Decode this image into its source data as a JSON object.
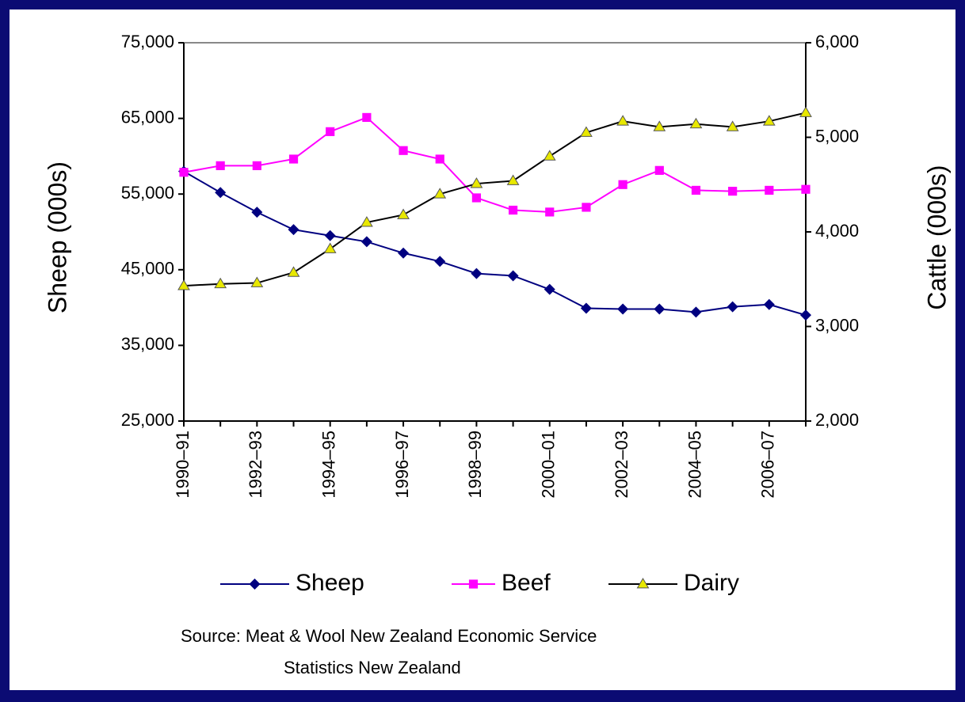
{
  "chart_data": {
    "type": "line",
    "y_label": "Sheep (000s)",
    "y2_label": "Cattle (000s)",
    "categories": [
      "1990–91",
      null,
      "1992–93",
      null,
      "1994–95",
      null,
      "1996–97",
      null,
      "1998–99",
      null,
      "2000–01",
      null,
      "2002–03",
      null,
      "2004–05",
      null,
      "2006–07",
      null
    ],
    "series": [
      {
        "name": "Sheep",
        "color": "#000080",
        "marker": "diamond",
        "marker_color": "#000080",
        "values": [
          58000,
          55200,
          52600,
          50300,
          49500,
          48700,
          47200,
          46100,
          44500,
          44200,
          42400,
          39900,
          39800,
          39800,
          39400,
          40100,
          40400,
          39000
        ]
      },
      {
        "name": "Beef",
        "color": "#ff00ff",
        "marker": "square",
        "marker_color": "#ff00ff",
        "axis": "y2",
        "values": [
          4630,
          4700,
          4700,
          4770,
          5060,
          5210,
          4860,
          4770,
          4360,
          4230,
          4210,
          4260,
          4500,
          4650,
          4440,
          4430,
          4440,
          4450
        ]
      },
      {
        "name": "Dairy",
        "color": "#000000",
        "marker": "triangle",
        "marker_color": "#e8e800",
        "axis": "y2",
        "values": [
          3430,
          3450,
          3460,
          3570,
          3820,
          4100,
          4180,
          4400,
          4510,
          4540,
          4800,
          5050,
          5170,
          5110,
          5140,
          5110,
          5170,
          5260
        ]
      }
    ],
    "ylim": [
      25000,
      75000
    ],
    "yticks": [
      {
        "value": 25000,
        "label": "25,000"
      },
      {
        "value": 35000,
        "label": "35,000"
      },
      {
        "value": 45000,
        "label": "45,000"
      },
      {
        "value": 55000,
        "label": "55,000"
      },
      {
        "value": 65000,
        "label": "65,000"
      },
      {
        "value": 75000,
        "label": "75,000"
      }
    ],
    "y2lim": [
      2000,
      6000
    ],
    "y2ticks": [
      {
        "value": 2000,
        "label": "2,000"
      },
      {
        "value": 3000,
        "label": "3,000"
      },
      {
        "value": 4000,
        "label": "4,000"
      },
      {
        "value": 5000,
        "label": "5,000"
      },
      {
        "value": 6000,
        "label": "6,000"
      }
    ],
    "grid": false,
    "legend": "bottom",
    "source": [
      "Source:  Meat & Wool New Zealand Economic Service",
      "Statistics New Zealand"
    ]
  }
}
